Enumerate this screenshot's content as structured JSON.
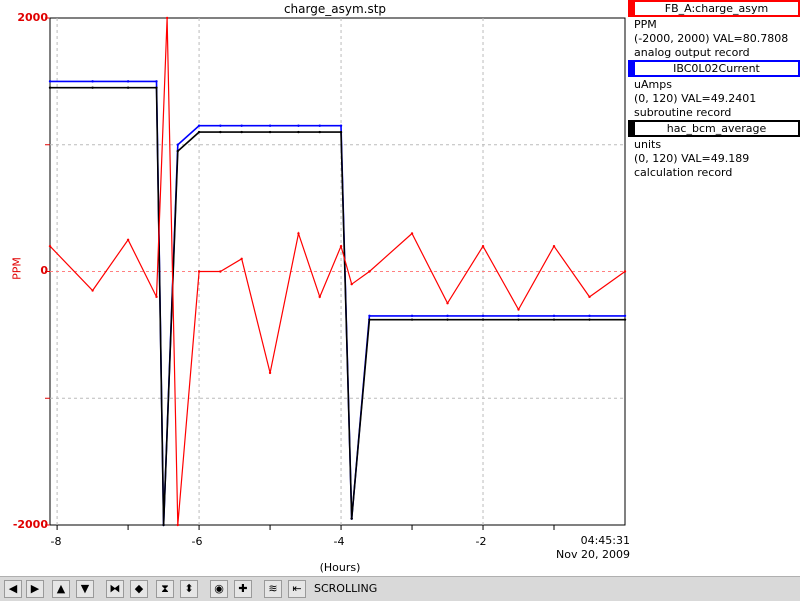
{
  "title": "charge_asym.stp",
  "y_axis": {
    "label": "PPM",
    "ticks": [
      "2000",
      "0",
      "-2000"
    ]
  },
  "x_axis": {
    "label": "(Hours)",
    "ticks": [
      "-8",
      "-6",
      "-4",
      "-2"
    ],
    "time": "04:45:31",
    "date": "Nov 20, 2009"
  },
  "legend": [
    {
      "name": "FB_A:charge_asym",
      "color": "#ff0000",
      "units": "PPM",
      "range_val": "(-2000, 2000) VAL=80.7808",
      "record": "analog output record"
    },
    {
      "name": "IBC0L02Current",
      "color": "#0000ff",
      "units": "uAmps",
      "range_val": "(0, 120) VAL=49.2401",
      "record": "subroutine record"
    },
    {
      "name": "hac_bcm_average",
      "color": "#000000",
      "units": "units",
      "range_val": "(0, 120) VAL=49.189",
      "record": "calculation record"
    }
  ],
  "toolbar": {
    "buttons": [
      {
        "name": "scroll-left-button",
        "glyph": "◀"
      },
      {
        "name": "scroll-right-button",
        "glyph": "▶"
      },
      {
        "name": "scroll-up-button",
        "glyph": "▲"
      },
      {
        "name": "scroll-down-button",
        "glyph": "▼"
      },
      {
        "name": "zoom-in-horizontal-button",
        "glyph": "⧓"
      },
      {
        "name": "zoom-out-horizontal-button",
        "glyph": "◆"
      },
      {
        "name": "zoom-in-vertical-button",
        "glyph": "⧗"
      },
      {
        "name": "zoom-out-vertical-button",
        "glyph": "⬍"
      },
      {
        "name": "reset-button",
        "glyph": "◉"
      },
      {
        "name": "add-button",
        "glyph": "✚"
      },
      {
        "name": "stretch-button",
        "glyph": "≋"
      },
      {
        "name": "back-button",
        "glyph": "⇤"
      }
    ],
    "status": "SCROLLING"
  },
  "chart_data": {
    "type": "line",
    "xlabel": "(Hours)",
    "ylabel": "PPM",
    "xlim": [
      -8.1,
      0
    ],
    "ylim": [
      -2000,
      2000
    ],
    "grid": true,
    "series": [
      {
        "name": "FB_A:charge_asym",
        "color": "#ff0000",
        "x": [
          -8.1,
          -7.5,
          -7.0,
          -6.6,
          -6.45,
          -6.3,
          -6.0,
          -5.7,
          -5.4,
          -5.0,
          -4.6,
          -4.3,
          -4.0,
          -3.85,
          -3.6,
          -3.0,
          -2.5,
          -2.0,
          -1.5,
          -1.0,
          -0.5,
          0
        ],
        "y": [
          200,
          -150,
          250,
          -200,
          2000,
          -2000,
          0,
          0,
          100,
          -800,
          300,
          -200,
          200,
          -100,
          0,
          300,
          -250,
          200,
          -300,
          200,
          -200,
          0
        ]
      },
      {
        "name": "IBC0L02Current",
        "color": "#0000ff",
        "x": [
          -8.1,
          -7.5,
          -7.0,
          -6.6,
          -6.5,
          -6.3,
          -6.0,
          -5.7,
          -5.4,
          -5.0,
          -4.6,
          -4.3,
          -4.0,
          -3.85,
          -3.6,
          -3.0,
          -2.5,
          -2.0,
          -1.5,
          -1.0,
          -0.5,
          0
        ],
        "y": [
          1500,
          1500,
          1500,
          1500,
          -2000,
          1000,
          1150,
          1150,
          1150,
          1150,
          1150,
          1150,
          1150,
          -1950,
          -350,
          -350,
          -350,
          -350,
          -350,
          -350,
          -350,
          -350
        ]
      },
      {
        "name": "hac_bcm_average",
        "color": "#000000",
        "x": [
          -8.1,
          -7.5,
          -7.0,
          -6.6,
          -6.5,
          -6.3,
          -6.0,
          -5.7,
          -5.4,
          -5.0,
          -4.6,
          -4.3,
          -4.0,
          -3.85,
          -3.6,
          -3.0,
          -2.5,
          -2.0,
          -1.5,
          -1.0,
          -0.5,
          0
        ],
        "y": [
          1450,
          1450,
          1450,
          1450,
          -2000,
          950,
          1100,
          1100,
          1100,
          1100,
          1100,
          1100,
          1100,
          -1950,
          -380,
          -380,
          -380,
          -380,
          -380,
          -380,
          -380,
          -380
        ]
      }
    ]
  }
}
